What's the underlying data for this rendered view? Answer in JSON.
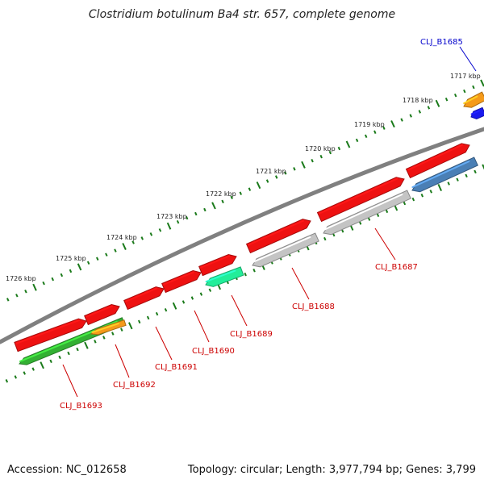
{
  "title": "Clostridium botulinum Ba4 str. 657, complete genome",
  "accession_label": "Accession: NC_012658",
  "stats_label": "Topology: circular; Length: 3,977,794 bp; Genes: 3,799",
  "colors": {
    "backbone": "#808080",
    "tick": "#1a7a1a",
    "label_red": "#cc0000",
    "label_blue": "#0000cc",
    "red_gene": "#ee1111",
    "gray_gene": "#c4c4c4",
    "steelblue_gene": "#4a7fb5",
    "green_gene": "#33b033",
    "orange_gene": "#f59a1a",
    "teal_gene": "#22ee99",
    "blue_gene": "#1a1aee"
  },
  "ticks": [
    "1717 kbp",
    "1718 kbp",
    "1719 kbp",
    "1720 kbp",
    "1721 kbp",
    "1722 kbp",
    "1723 kbp",
    "1724 kbp",
    "1725 kbp",
    "1726 kbp"
  ],
  "genes": [
    {
      "label": "CLJ_B1685",
      "color": "blue"
    },
    {
      "label": "CLJ_B1687",
      "color": "red"
    },
    {
      "label": "CLJ_B1688",
      "color": "red"
    },
    {
      "label": "CLJ_B1689",
      "color": "red"
    },
    {
      "label": "CLJ_B1690",
      "color": "red"
    },
    {
      "label": "CLJ_B1691",
      "color": "red"
    },
    {
      "label": "CLJ_B1692",
      "color": "red"
    },
    {
      "label": "CLJ_B1693",
      "color": "red"
    }
  ]
}
